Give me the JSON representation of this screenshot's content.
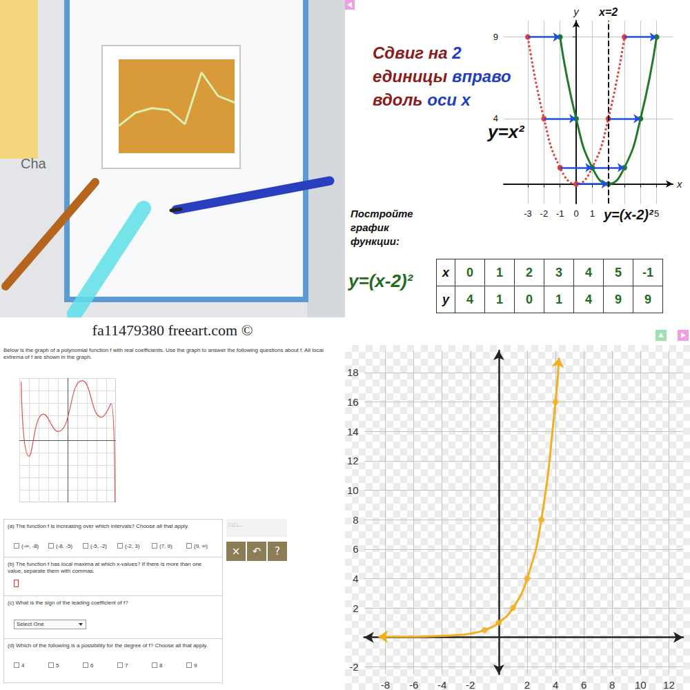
{
  "photo": {
    "label": "Cha",
    "watermark": "fa11479380 freeart.com ©"
  },
  "slide": {
    "heading": [
      [
        {
          "text": "Сдвиг на ",
          "color": "#8b1c1c"
        },
        {
          "text": "2",
          "color": "#1f3fbf"
        }
      ],
      [
        {
          "text": "единицы ",
          "color": "#8b1c1c"
        },
        {
          "text": "вправо",
          "color": "#1f3fbf"
        }
      ],
      [
        {
          "text": "вдоль ",
          "color": "#8b1c1c"
        },
        {
          "text": "оси x",
          "color": "#1f3fbf"
        }
      ]
    ],
    "task": "Постройте график функции:",
    "formula": "y=(x-2)²",
    "table": {
      "rows": [
        [
          "x",
          0,
          1,
          2,
          3,
          4,
          5,
          -1
        ],
        [
          "y",
          4,
          1,
          0,
          1,
          4,
          9,
          9
        ]
      ]
    }
  },
  "worksheet": {
    "intro": "Below is the graph of a polynomial function f with real coefficients. Use the graph to answer the following questions about f. All local extrema of f are shown in the graph.",
    "questions": [
      {
        "text": "(a) The function f is increasing over which intervals? Choose all that apply.",
        "options": [
          "(-∞, -8)",
          "(-8, -5)",
          "(-5, -2)",
          "(-2, 3)",
          "(7, 9)",
          "(9, ∞)"
        ]
      },
      {
        "text": "(b) The function f has local maxima at which x-values? If there is more than one value, separate them with commas."
      },
      {
        "text": "(c) What is the sign of the leading coefficient of f?",
        "select": "Select One"
      },
      {
        "text": "(d) Which of the following is a possibility for the degree of f? Choose all that apply.",
        "options": [
          4,
          5,
          6,
          7,
          8,
          9
        ]
      }
    ],
    "answer_hint": "□,□,...",
    "buttons": [
      "×",
      "↶",
      "?"
    ]
  },
  "chart_data": [
    {
      "type": "line",
      "categories": [
        null,
        null,
        null,
        null,
        null,
        null,
        null,
        null
      ],
      "values": [
        29,
        43,
        48,
        46,
        31,
        86,
        61,
        54
      ],
      "color": "#d8f0b0",
      "ylim": [
        0,
        100
      ],
      "yticks": [
        0,
        20,
        40,
        60,
        80,
        100
      ],
      "grid": false,
      "tick_labels": false
    },
    {
      "type": "line",
      "xlabel": "x",
      "ylabel": "y",
      "xlim": [
        -4.5,
        6
      ],
      "ylim": [
        -1.2,
        10
      ],
      "xticks": [
        -3,
        -2,
        -1,
        0,
        1,
        2,
        3,
        4,
        5
      ],
      "yticks": [
        4,
        9
      ],
      "grid": true,
      "series": [
        {
          "label": "y=x²",
          "color": "#e0403a",
          "line_style": "dotted",
          "marker": "circle",
          "x": [
            -3,
            -2,
            -1,
            0,
            1,
            2,
            3
          ],
          "values": [
            9,
            4,
            1,
            0,
            1,
            4,
            9
          ]
        },
        {
          "label": "y=(x-2)²",
          "color": "#1f7a2a",
          "line_style": "solid",
          "marker": "circle",
          "x": [
            -1,
            0,
            1,
            2,
            3,
            4,
            5
          ],
          "values": [
            9,
            4,
            1,
            0,
            1,
            4,
            9
          ]
        }
      ],
      "vlines": [
        {
          "x": 2,
          "label": "x=2"
        }
      ]
    },
    {
      "type": "line",
      "color": "#e05050",
      "x": [
        -9.6,
        -8,
        -5,
        -2,
        3,
        7,
        9,
        9.8
      ],
      "values": [
        9.4,
        -2.6,
        4.2,
        1.4,
        9.6,
        3.7,
        5.9,
        -10
      ],
      "xlim": [
        -10,
        10
      ],
      "ylim": [
        -10,
        10
      ],
      "xticks": [
        -10,
        -8,
        -6,
        -4,
        -2,
        0,
        2,
        4,
        6,
        8,
        10
      ],
      "yticks": [
        -10,
        -8,
        -6,
        -4,
        -2,
        0,
        2,
        4,
        6,
        8,
        10
      ],
      "grid": true,
      "tick_labels": false
    },
    {
      "type": "line",
      "xlim": [
        -9.5,
        13
      ],
      "ylim": [
        -2.5,
        19.5
      ],
      "xticks": [
        -8,
        -6,
        -4,
        -2,
        2,
        4,
        6,
        8,
        10,
        12
      ],
      "yticks": [
        -2,
        2,
        4,
        6,
        8,
        10,
        12,
        14,
        16,
        18
      ],
      "grid": true,
      "series": [
        {
          "type": "line",
          "color": "#f0b020",
          "marker": "none",
          "line_style": "solid",
          "x": [
            -8.5,
            -6,
            -4,
            -3,
            -2,
            -1,
            0,
            1,
            2,
            3,
            4,
            4.25
          ],
          "values": [
            0.05,
            0.05,
            0.1,
            0.15,
            0.25,
            0.5,
            1,
            2,
            4,
            8,
            16,
            19
          ]
        },
        {
          "type": "scatter",
          "color": "#f0b020",
          "marker": "circle",
          "x": [
            -1,
            0,
            1,
            2,
            3,
            4
          ],
          "values": [
            0.5,
            1,
            2,
            4,
            8,
            16
          ]
        }
      ]
    }
  ]
}
